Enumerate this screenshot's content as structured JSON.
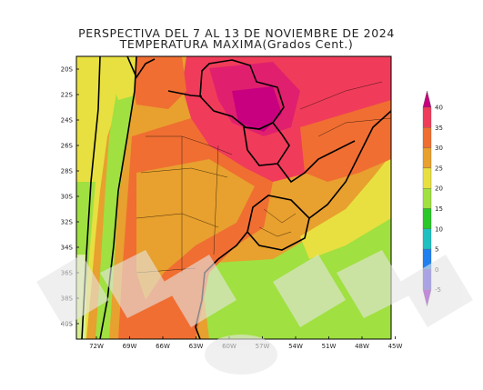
{
  "title": "PERSPECTIVA DEL 7 AL 13 DE NOVIEMBRE DE 2024",
  "subtitle": "TEMPERATURA MAXIMA(Grados Cent.)",
  "lat_labels": [
    "20S",
    "22S",
    "24S",
    "26S",
    "28S",
    "30S",
    "32S",
    "34S",
    "36S",
    "38S",
    "40S"
  ],
  "lon_labels": [
    "72W",
    "69W",
    "66W",
    "63W",
    "60W",
    "57W",
    "54W",
    "51W",
    "48W",
    "45W"
  ],
  "colorbar": {
    "labels": [
      "40",
      "35",
      "30",
      "25",
      "20",
      "15",
      "10",
      "5",
      "0",
      "-5"
    ],
    "colors": [
      "#c8007f",
      "#f03c5a",
      "#f06e32",
      "#e8a02e",
      "#e8e040",
      "#a0e040",
      "#28c828",
      "#20c0c0",
      "#2080f0",
      "#5040e0",
      "#8a00c8"
    ]
  },
  "watermark_text": "SMN"
}
